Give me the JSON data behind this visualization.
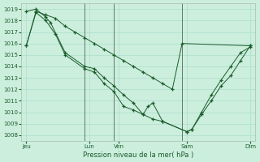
{
  "background_color": "#cceedd",
  "grid_color": "#aaddcc",
  "line_color": "#1a5c2a",
  "xlabel": "Pression niveau de la mer( hPa )",
  "ylim": [
    1007.5,
    1019.5
  ],
  "yticks": [
    1008,
    1009,
    1010,
    1011,
    1012,
    1013,
    1014,
    1015,
    1016,
    1017,
    1018,
    1019
  ],
  "xlim": [
    0,
    24
  ],
  "xtick_labels": [
    "Jeu",
    "Lun",
    "Ven",
    "Sam",
    "Dim"
  ],
  "xtick_positions": [
    0.5,
    7,
    10,
    17,
    23.5
  ],
  "vlines": [
    6.5,
    9.5,
    16.5
  ],
  "series1_x": [
    0.5,
    1.5,
    2.5,
    3.5,
    4.5,
    5.5,
    6.5,
    7.5,
    8.5,
    9.5,
    10.5,
    11.5,
    12.5,
    13.5,
    14.5,
    15.5,
    16.5,
    23.5
  ],
  "series1_y": [
    1015.8,
    1018.8,
    1018.5,
    1018.2,
    1017.5,
    1017.0,
    1016.5,
    1016.0,
    1015.5,
    1015.0,
    1014.5,
    1014.0,
    1013.5,
    1013.0,
    1012.5,
    1012.0,
    1016.0,
    1015.8
  ],
  "series2_x": [
    0.5,
    1.5,
    2.5,
    3.0,
    4.5,
    6.5,
    7.5,
    8.5,
    9.5,
    10.5,
    11.5,
    12.5,
    13.5,
    14.5,
    17.0,
    17.5,
    18.5,
    19.5,
    20.5,
    21.5,
    22.5,
    23.5
  ],
  "series2_y": [
    1018.8,
    1019.0,
    1018.3,
    1017.8,
    1015.2,
    1014.0,
    1013.8,
    1013.0,
    1012.3,
    1011.5,
    1010.8,
    1009.8,
    1009.4,
    1009.2,
    1008.3,
    1008.5,
    1009.8,
    1011.0,
    1012.3,
    1013.2,
    1014.5,
    1015.8
  ],
  "series3_x": [
    0.5,
    1.5,
    2.5,
    3.5,
    4.5,
    6.5,
    7.5,
    8.5,
    9.5,
    10.5,
    11.5,
    12.5,
    13.0,
    13.5,
    14.5,
    17.0,
    17.5,
    18.5,
    19.5,
    20.5,
    21.5,
    22.5,
    23.5
  ],
  "series3_y": [
    1015.8,
    1018.7,
    1018.0,
    1016.8,
    1015.0,
    1013.8,
    1013.5,
    1012.5,
    1011.8,
    1010.5,
    1010.2,
    1009.8,
    1010.5,
    1010.8,
    1009.2,
    1008.3,
    1008.5,
    1010.0,
    1011.5,
    1012.8,
    1014.0,
    1015.2,
    1015.7
  ]
}
